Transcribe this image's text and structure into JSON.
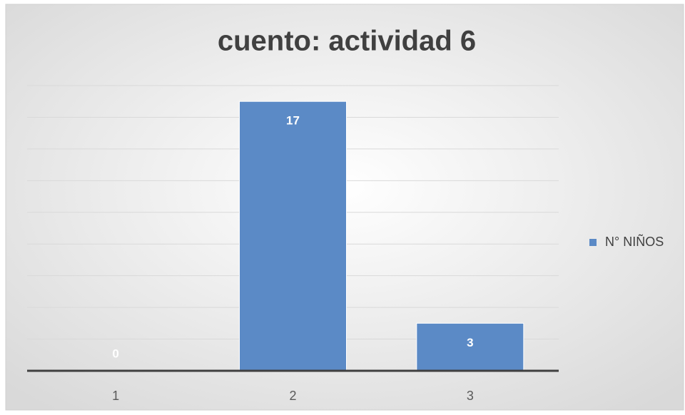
{
  "chart_data": {
    "type": "bar",
    "title": "cuento: actividad 6",
    "categories": [
      "1",
      "2",
      "3"
    ],
    "series": [
      {
        "name": "N° NIÑOS",
        "color": "#5b8ac6",
        "values": [
          0,
          17,
          3
        ]
      }
    ],
    "ylim": [
      0,
      18
    ],
    "yticks": [
      0,
      2,
      4,
      6,
      8,
      10,
      12,
      14,
      16,
      18
    ],
    "show_ytick_labels": false,
    "grid": true,
    "legend": "right",
    "data_labels": true
  }
}
